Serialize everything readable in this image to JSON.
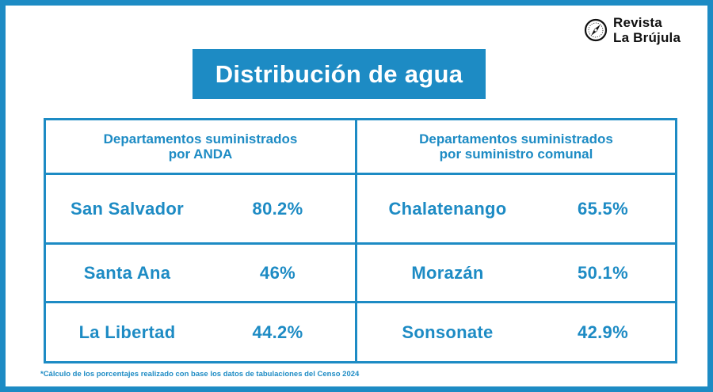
{
  "brand": {
    "line1": "Revista",
    "line2": "La Brújula",
    "logo_icon": "compass-icon"
  },
  "title": "Distribución de agua",
  "colors": {
    "accent": "#1d8bc4",
    "text_dark": "#111111",
    "background": "#ffffff"
  },
  "table": {
    "left_header": {
      "line1": "Departamentos suministrados",
      "line2": "por ANDA"
    },
    "right_header": {
      "line1": "Departamentos suministrados",
      "line2": "por suministro comunal"
    },
    "rows": [
      {
        "left_name": "San Salvador",
        "left_value": "80.2%",
        "right_name": "Chalatenango",
        "right_value": "65.5%"
      },
      {
        "left_name": "Santa Ana",
        "left_value": "46%",
        "right_name": "Morazán",
        "right_value": "50.1%"
      },
      {
        "left_name": "La Libertad",
        "left_value": "44.2%",
        "right_name": "Sonsonate",
        "right_value": "42.9%"
      }
    ]
  },
  "footnote": "*Cálculo de los porcentajes realizado con base los datos de tabulaciones del Censo 2024"
}
